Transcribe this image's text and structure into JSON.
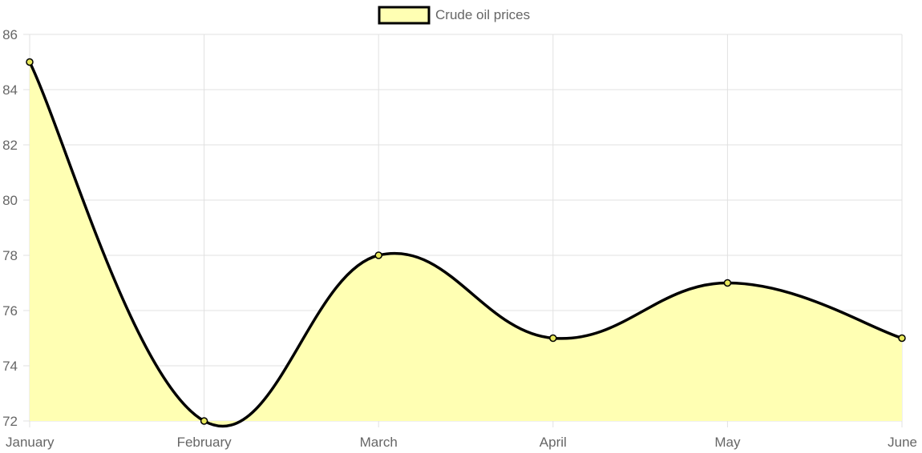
{
  "chart_data": {
    "type": "area",
    "categories": [
      "January",
      "February",
      "March",
      "April",
      "May",
      "June"
    ],
    "series": [
      {
        "name": "Crude oil prices",
        "values": [
          85,
          72,
          78,
          75,
          77,
          75
        ],
        "fill_color": "#ffffb3",
        "line_color": "#000000",
        "point_fill": "#e8e85c"
      }
    ],
    "ylim": [
      72,
      86
    ],
    "yticks": [
      72,
      74,
      76,
      78,
      80,
      82,
      84,
      86
    ],
    "grid": true,
    "legend_position": "top-center",
    "curve": "smooth"
  }
}
